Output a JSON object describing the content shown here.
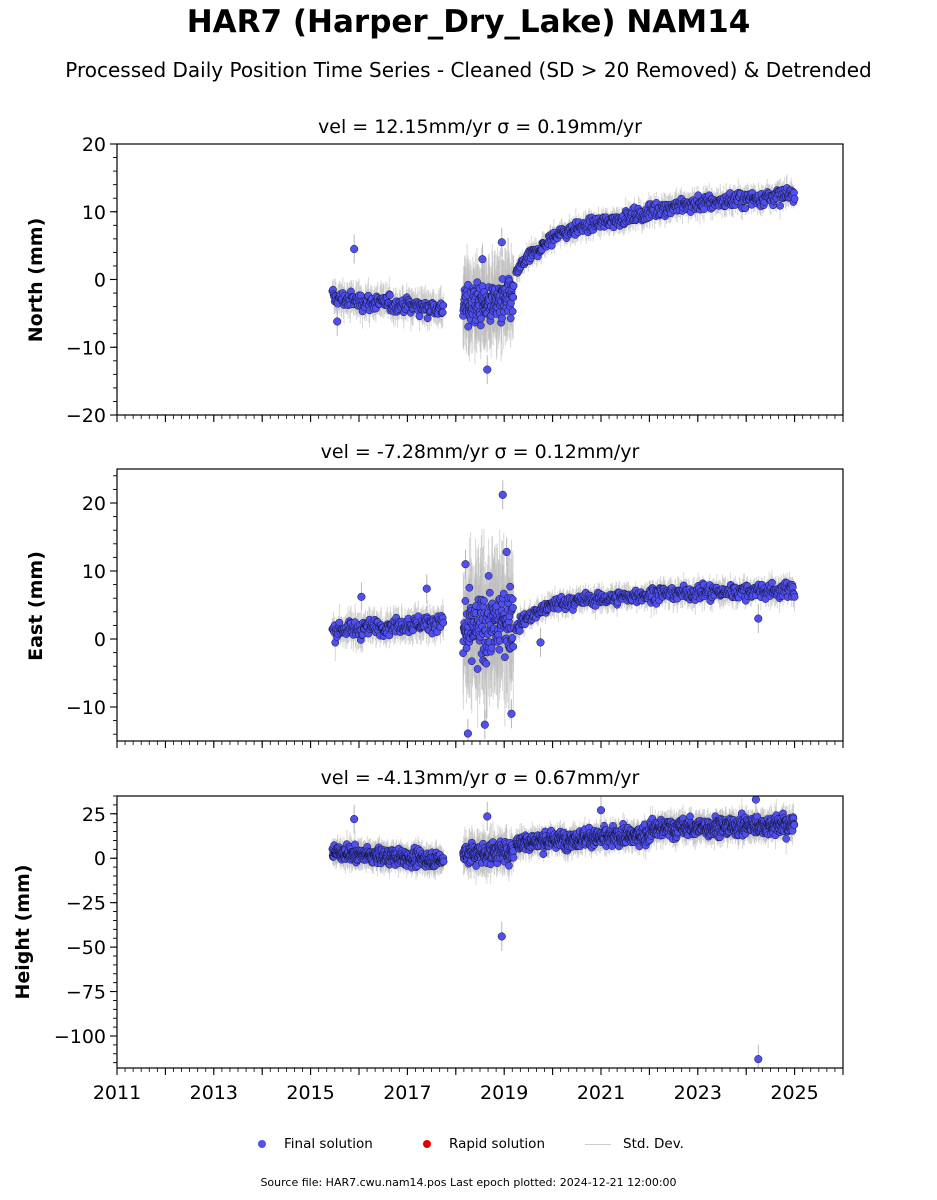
{
  "title": "HAR7 (Harper_Dry_Lake) NAM14",
  "subtitle": "Processed Daily Position Time Series - Cleaned (SD > 20 Removed) & Detrended",
  "footer": "Source file: HAR7.cwu.nam14.pos  Last epoch plotted: 2024-12-21 12:00:00",
  "legend": {
    "final": "Final solution",
    "rapid": "Rapid solution",
    "std": "Std. Dev."
  },
  "colors": {
    "final": "#5050f0",
    "rapid": "#e00000",
    "std": "#b8b8b8"
  },
  "chart_data": [
    {
      "type": "scatter",
      "panel": "north",
      "title": "vel = 12.15mm/yr   σ = 0.19mm/yr",
      "ylabel": "North (mm)",
      "xlim": [
        2011,
        2026
      ],
      "ylim": [
        -20,
        20
      ],
      "yticks": [
        -20,
        -10,
        0,
        10,
        20
      ],
      "ytick_labels": [
        "−20",
        "−10",
        "0",
        "10",
        "20"
      ],
      "xticks": [
        2011,
        2013,
        2015,
        2017,
        2019,
        2021,
        2023,
        2025
      ],
      "xtick_labels": [],
      "segments": [
        {
          "x_start": 2015.45,
          "x_end": 2017.75,
          "y_start": -2.5,
          "y_end": -4.2,
          "noise": 1.0,
          "err": 2.0
        },
        {
          "x_start": 2018.15,
          "x_end": 2019.2,
          "y_start": -4.0,
          "y_end": -3.0,
          "noise": 2.5,
          "err": 5.0
        },
        {
          "x_start": 2019.25,
          "x_end": 2020.0,
          "y_start": 0.5,
          "y_end": 6.0,
          "noise": 0.8,
          "err": 1.5
        },
        {
          "x_start": 2020.0,
          "x_end": 2022.0,
          "y_start": 6.0,
          "y_end": 9.8,
          "noise": 0.8,
          "err": 1.5
        },
        {
          "x_start": 2022.0,
          "x_end": 2025.0,
          "y_start": 10.0,
          "y_end": 12.5,
          "noise": 1.0,
          "err": 1.6
        }
      ],
      "outliers": [
        {
          "x": 2015.9,
          "y": 4.5
        },
        {
          "x": 2018.95,
          "y": 5.5
        },
        {
          "x": 2018.65,
          "y": -13.3
        },
        {
          "x": 2015.55,
          "y": -6.2
        },
        {
          "x": 2018.55,
          "y": 3.0
        }
      ]
    },
    {
      "type": "scatter",
      "panel": "east",
      "title": "vel = -7.28mm/yr   σ = 0.12mm/yr",
      "ylabel": "East (mm)",
      "xlim": [
        2011,
        2026
      ],
      "ylim": [
        -15,
        25
      ],
      "yticks": [
        -10,
        0,
        10,
        20
      ],
      "ytick_labels": [
        "−10",
        "0",
        "10",
        "20"
      ],
      "xticks": [
        2011,
        2013,
        2015,
        2017,
        2019,
        2021,
        2023,
        2025
      ],
      "xtick_labels": [],
      "segments": [
        {
          "x_start": 2015.45,
          "x_end": 2017.75,
          "y_start": 1.0,
          "y_end": 2.5,
          "noise": 1.0,
          "err": 2.0
        },
        {
          "x_start": 2018.15,
          "x_end": 2019.2,
          "y_start": 0.0,
          "y_end": 3.0,
          "noise": 4.0,
          "err": 8.0
        },
        {
          "x_start": 2019.25,
          "x_end": 2020.0,
          "y_start": 1.5,
          "y_end": 5.0,
          "noise": 0.8,
          "err": 1.5
        },
        {
          "x_start": 2020.0,
          "x_end": 2022.0,
          "y_start": 5.0,
          "y_end": 6.5,
          "noise": 0.8,
          "err": 1.5
        },
        {
          "x_start": 2022.0,
          "x_end": 2025.0,
          "y_start": 6.5,
          "y_end": 7.2,
          "noise": 0.9,
          "err": 1.6
        }
      ],
      "outliers": [
        {
          "x": 2018.97,
          "y": 21.2
        },
        {
          "x": 2019.05,
          "y": 12.8
        },
        {
          "x": 2018.2,
          "y": 11.0
        },
        {
          "x": 2018.25,
          "y": -13.9
        },
        {
          "x": 2019.15,
          "y": -11.0
        },
        {
          "x": 2018.6,
          "y": -12.6
        },
        {
          "x": 2024.25,
          "y": 3.0
        },
        {
          "x": 2016.05,
          "y": 6.2
        },
        {
          "x": 2017.4,
          "y": 7.4
        },
        {
          "x": 2019.75,
          "y": -0.5
        }
      ]
    },
    {
      "type": "scatter",
      "panel": "height",
      "title": "vel = -4.13mm/yr   σ = 0.67mm/yr",
      "ylabel": "Height (mm)",
      "xlim": [
        2011,
        2026
      ],
      "ylim": [
        -118,
        35
      ],
      "yticks": [
        -100,
        -75,
        -50,
        -25,
        0,
        25
      ],
      "ytick_labels": [
        "−100",
        "−75",
        "−50",
        "−25",
        "0",
        "25"
      ],
      "xticks": [
        2011,
        2013,
        2015,
        2017,
        2019,
        2021,
        2023,
        2025
      ],
      "xtick_labels": [
        "2011",
        "2013",
        "2015",
        "2017",
        "2019",
        "2021",
        "2023",
        "2025"
      ],
      "segments": [
        {
          "x_start": 2015.45,
          "x_end": 2017.75,
          "y_start": 4.0,
          "y_end": -1.0,
          "noise": 3.5,
          "err": 6.0
        },
        {
          "x_start": 2018.15,
          "x_end": 2019.2,
          "y_start": 2.0,
          "y_end": 4.0,
          "noise": 5.0,
          "err": 9.0
        },
        {
          "x_start": 2019.25,
          "x_end": 2022.0,
          "y_start": 8.0,
          "y_end": 13.0,
          "noise": 4.0,
          "err": 6.0
        },
        {
          "x_start": 2022.0,
          "x_end": 2025.0,
          "y_start": 16.0,
          "y_end": 19.0,
          "noise": 4.5,
          "err": 6.5
        }
      ],
      "outliers": [
        {
          "x": 2018.95,
          "y": -44.0
        },
        {
          "x": 2024.25,
          "y": -113.0
        },
        {
          "x": 2015.9,
          "y": 22.0
        },
        {
          "x": 2018.65,
          "y": 23.5
        },
        {
          "x": 2021.0,
          "y": 27.0
        },
        {
          "x": 2024.2,
          "y": 33.0
        }
      ]
    }
  ]
}
